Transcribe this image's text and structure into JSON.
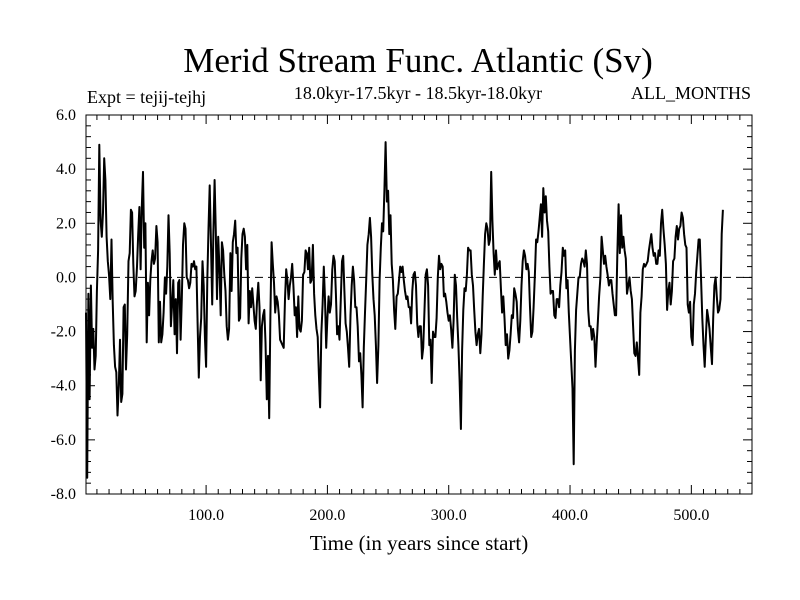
{
  "chart_data": {
    "type": "line",
    "title": "Merid Stream Func. Atlantic (Sv)",
    "subtitle": "18.0kyr-17.5kyr - 18.5kyr-18.0kyr",
    "left_label": "Expt = tejij-tejhj",
    "right_label": "ALL_MONTHS",
    "xlabel": "Time (in years since start)",
    "ylabel": "",
    "xlim": [
      1,
      550
    ],
    "ylim": [
      -8,
      6
    ],
    "x_ticks": [
      100,
      200,
      300,
      400,
      500
    ],
    "x_tick_labels": [
      "100.0",
      "200.0",
      "300.0",
      "400.0",
      "500.0"
    ],
    "y_ticks": [
      -8,
      -6,
      -4,
      -2,
      0,
      2,
      4,
      6
    ],
    "y_tick_labels": [
      "-8.0",
      "-6.0",
      "-4.0",
      "-2.0",
      "0.0",
      "2.0",
      "4.0",
      "6.0"
    ],
    "reference_line": 0,
    "series": [
      {
        "name": "Expt = tejij-tejhj",
        "x_start": 1,
        "x_step": 1,
        "values": [
          -1.3,
          -7.4,
          -0.6,
          -4.5,
          -0.3,
          -2.6,
          -1.9,
          -3.4,
          -2.9,
          -0.5,
          1.0,
          4.9,
          2.1,
          1.5,
          2.4,
          4.4,
          3.6,
          1.5,
          0.6,
          0.1,
          -0.8,
          1.4,
          -0.9,
          -2.5,
          -3.3,
          -3.5,
          -5.1,
          -4.0,
          -2.3,
          -4.6,
          -4.3,
          -1.1,
          -1.0,
          -3.4,
          -2.1,
          0.6,
          0.9,
          2.5,
          2.4,
          0.5,
          -0.7,
          -0.5,
          0.4,
          1.6,
          2.6,
          0.3,
          2.6,
          3.9,
          1.1,
          2.0,
          -2.4,
          -0.2,
          -1.4,
          -0.1,
          0.6,
          1.0,
          0.5,
          0.7,
          1.9,
          1.3,
          -2.4,
          -0.9,
          -2.4,
          -2.1,
          -1.3,
          0.0,
          -0.6,
          0.4,
          2.3,
          0.9,
          -1.8,
          -1.0,
          -0.1,
          -2.1,
          -0.8,
          -2.8,
          -0.2,
          -0.1,
          -2.3,
          -0.8,
          1.2,
          2.0,
          1.8,
          0.0,
          -0.1,
          -0.4,
          -0.2,
          0.5,
          0.4,
          0.6,
          0.3,
          0.4,
          -1.7,
          -3.7,
          -2.2,
          -1.5,
          0.6,
          -0.3,
          -2.2,
          -3.3,
          -0.1,
          1.8,
          3.4,
          1.2,
          -1.0,
          1.7,
          3.6,
          1.7,
          -0.8,
          1.5,
          0.4,
          -1.4,
          1.3,
          1.0,
          0.1,
          -0.5,
          -1.8,
          -2.3,
          -1.9,
          0.9,
          -0.5,
          1.3,
          1.6,
          2.1,
          0.9,
          1.1,
          -1.6,
          -1.5,
          0.7,
          1.6,
          1.8,
          1.5,
          0.3,
          1.2,
          -1.7,
          -0.5,
          -1.1,
          -0.4,
          -1.0,
          -1.6,
          -1.9,
          -0.9,
          -0.2,
          -1.1,
          -3.8,
          -1.8,
          -1.4,
          -1.2,
          -2.4,
          -4.5,
          -2.9,
          -5.2,
          -1.4,
          1.3,
          0.5,
          -0.2,
          -1.3,
          -0.7,
          -0.9,
          -1.4,
          -2.3,
          -2.4,
          -2.5,
          -2.6,
          -0.8,
          0.3,
          -0.1,
          -0.8,
          -0.3,
          0.0,
          0.5,
          -0.3,
          -1.4,
          -1.1,
          -2.2,
          -0.7,
          -1.9,
          -2.0,
          -1.6,
          0.1,
          0.2,
          1.0,
          0.9,
          0.3,
          1.1,
          -0.2,
          -0.1,
          1.2,
          -0.6,
          -1.4,
          -1.9,
          -2.2,
          -3.6,
          -4.8,
          -2.1,
          -1.0,
          0.4,
          -0.8,
          -2.6,
          -1.5,
          -0.7,
          -1.3,
          -1.0,
          0.3,
          0.8,
          0.6,
          -0.6,
          -2.1,
          -1.8,
          -2.3,
          -0.8,
          0.6,
          0.8,
          -0.5,
          -1.7,
          -2.0,
          -2.6,
          -3.3,
          -1.4,
          -0.3,
          0.4,
          -0.1,
          -1.1,
          -1.1,
          -1.8,
          -3.1,
          -2.8,
          -3.6,
          -4.8,
          -2.6,
          -1.3,
          -0.1,
          1.2,
          1.6,
          2.2,
          1.5,
          0.1,
          -0.8,
          -1.4,
          -2.5,
          -3.9,
          -2.5,
          -0.1,
          1.1,
          2.0,
          1.7,
          3.2,
          5.0,
          2.8,
          3.2,
          1.6,
          2.3,
          0.5,
          -0.1,
          -1.2,
          -1.9,
          -0.7,
          -0.6,
          -0.1,
          0.4,
          0.2,
          0.4,
          -0.1,
          -0.5,
          -0.8,
          -0.7,
          -1.1,
          -1.1,
          -1.7,
          -0.5,
          0.1,
          0.2,
          -0.3,
          -1.7,
          -2.2,
          -1.8,
          -1.8,
          -3.0,
          -2.6,
          -1.2,
          0.1,
          0.3,
          -0.3,
          -2.5,
          -2.3,
          -3.9,
          -2.0,
          -2.2,
          -2.2,
          -1.5,
          0.0,
          0.8,
          0.3,
          0.5,
          0.4,
          -0.7,
          -0.6,
          -0.9,
          -1.3,
          -1.6,
          -1.4,
          -1.9,
          -2.6,
          -1.6,
          0.1,
          -0.3,
          -1.5,
          -2.5,
          -3.8,
          -5.6,
          -2.7,
          -1.2,
          -0.4,
          -0.5,
          0.1,
          1.1,
          1.0,
          1.0,
          0.1,
          -0.3,
          -1.2,
          -2.0,
          -2.5,
          -2.1,
          -1.9,
          -2.8,
          -2.1,
          -0.7,
          0.5,
          1.6,
          2.0,
          1.8,
          1.2,
          1.4,
          3.9,
          2.1,
          0.9,
          0.1,
          1.0,
          0.3,
          0.5,
          0.6,
          -0.4,
          -1.3,
          -0.7,
          -1.5,
          -2.5,
          -2.1,
          -3.0,
          -2.7,
          -2.1,
          -1.4,
          -1.5,
          -0.4,
          -0.6,
          -0.9,
          -1.9,
          -2.4,
          -1.6,
          -0.3,
          0.6,
          1.0,
          0.8,
          0.3,
          0.5,
          0.2,
          -1.1,
          -2.2,
          -2.0,
          -1.1,
          0.1,
          1.4,
          1.3,
          1.7,
          2.2,
          2.7,
          1.5,
          3.3,
          2.4,
          3.0,
          2.1,
          1.7,
          0.4,
          -0.6,
          -0.5,
          -0.5,
          -1.4,
          -1.5,
          -0.8,
          -0.8,
          -1.1,
          -0.3,
          0.2,
          1.1,
          0.8,
          1.0,
          -0.4,
          -0.1,
          -1.3,
          -2.2,
          -3.1,
          -4.1,
          -6.9,
          -2.7,
          -1.2,
          -0.6,
          0.0,
          0.0,
          0.5,
          0.7,
          0.6,
          0.4,
          1.0,
          0.5,
          -1.2,
          -1.8,
          -1.8,
          -2.3,
          -1.9,
          -2.2,
          -3.3,
          -2.4,
          -1.6,
          -0.7,
          0.0,
          1.5,
          1.0,
          0.5,
          0.8,
          0.4,
          0.1,
          -0.3,
          -0.1,
          -0.1,
          -0.6,
          -1.0,
          -1.4,
          -1.4,
          0.8,
          2.7,
          0.9,
          2.3,
          1.1,
          1.5,
          1.0,
          0.7,
          -0.6,
          -0.3,
          0.0,
          -0.5,
          -0.8,
          -1.8,
          -2.8,
          -2.9,
          -2.4,
          -3.0,
          -3.6,
          -1.3,
          -0.7,
          0.3,
          0.5,
          0.4,
          0.5,
          0.6,
          1.0,
          1.3,
          1.6,
          1.1,
          0.8,
          0.9,
          0.5,
          0.5,
          1.0,
          0.8,
          2.0,
          2.5,
          1.8,
          1.2,
          0.5,
          -1.2,
          -0.5,
          -0.2,
          -1.0,
          -0.5,
          0.6,
          0.7,
          1.5,
          1.9,
          1.4,
          1.8,
          1.9,
          2.4,
          2.2,
          1.6,
          1.2,
          1.1,
          -1.0,
          -1.3,
          -0.9,
          -2.2,
          -2.5,
          -1.0,
          -0.6,
          0.2,
          0.8,
          1.4,
          1.4,
          0.0,
          -1.5,
          -2.5,
          -3.3,
          -2.2,
          -1.2,
          -1.5,
          -1.9,
          -2.6,
          -3.2,
          -1.5,
          -0.3,
          0.0,
          -0.7,
          -1.3,
          -1.2,
          -0.8,
          1.6,
          2.5
        ]
      }
    ]
  }
}
